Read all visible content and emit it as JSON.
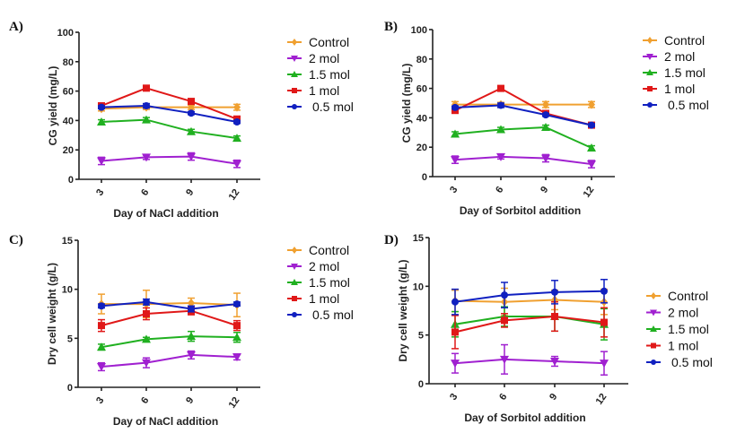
{
  "series_styles": [
    {
      "name": "Control",
      "color": "#f0a030",
      "marker": "diamond"
    },
    {
      "name": "2 mol",
      "color": "#a020d0",
      "marker": "triangle-down"
    },
    {
      "name": "1.5 mol",
      "color": "#20b020",
      "marker": "triangle-up"
    },
    {
      "name": "1 mol",
      "color": "#e01818",
      "marker": "square"
    },
    {
      "name": "0.5 mol",
      "color": "#1020c0",
      "marker": "circle"
    }
  ],
  "chart_data": [
    {
      "panel": "A)",
      "type": "line",
      "title": "",
      "xlabel": "Day of NaCl addition",
      "ylabel": "CG yield (mg/L)",
      "categories": [
        "3",
        "6",
        "9",
        "12"
      ],
      "yticks": [
        "0",
        "20",
        "40",
        "60",
        "80",
        "100"
      ],
      "ylim": [
        0,
        100
      ],
      "legend": "right",
      "series": [
        {
          "name": "Control",
          "values": [
            48,
            49,
            49,
            49
          ],
          "errors": [
            1.5,
            1.5,
            1.5,
            2
          ]
        },
        {
          "name": "2 mol",
          "values": [
            12.5,
            15,
            15.5,
            10.5
          ],
          "errors": [
            2.5,
            1.5,
            2.5,
            2.5
          ]
        },
        {
          "name": "1.5 mol",
          "values": [
            39,
            40.5,
            32.5,
            28
          ],
          "errors": [
            1.5,
            1.5,
            1.5,
            1.5
          ]
        },
        {
          "name": "1 mol",
          "values": [
            50,
            62,
            53,
            41
          ],
          "errors": [
            1,
            1,
            1.5,
            1
          ]
        },
        {
          "name": "0.5 mol",
          "values": [
            49,
            50,
            45,
            39
          ],
          "errors": [
            1,
            1.5,
            1,
            1
          ]
        }
      ]
    },
    {
      "panel": "B)",
      "type": "line",
      "title": "",
      "xlabel": "Day of Sorbitol addition",
      "ylabel": "CG yield (mg/L)",
      "categories": [
        "3",
        "6",
        "9",
        "12"
      ],
      "yticks": [
        "0",
        "20",
        "40",
        "60",
        "80",
        "100"
      ],
      "ylim": [
        0,
        100
      ],
      "legend": "right",
      "series": [
        {
          "name": "Control",
          "values": [
            49,
            49,
            49,
            49
          ],
          "errors": [
            2,
            1.5,
            2,
            2
          ]
        },
        {
          "name": "2 mol",
          "values": [
            11.5,
            13.5,
            12.5,
            8.5
          ],
          "errors": [
            2.5,
            1.5,
            2.5,
            2.5
          ]
        },
        {
          "name": "1.5 mol",
          "values": [
            29,
            32,
            33.5,
            19.5
          ],
          "errors": [
            1.5,
            1.5,
            1.5,
            1.5
          ]
        },
        {
          "name": "1 mol",
          "values": [
            45,
            60,
            43,
            35
          ],
          "errors": [
            1.5,
            1,
            1,
            1
          ]
        },
        {
          "name": "0.5 mol",
          "values": [
            47,
            48.5,
            42,
            35
          ],
          "errors": [
            1,
            1.5,
            1,
            1
          ]
        }
      ]
    },
    {
      "panel": "C)",
      "type": "line",
      "title": "",
      "xlabel": "Day of NaCl addition",
      "ylabel": "Dry cell weight (g/L)",
      "categories": [
        "3",
        "6",
        "9",
        "12"
      ],
      "yticks": [
        "0",
        "5",
        "10",
        "15"
      ],
      "ylim": [
        0,
        15
      ],
      "legend": "right",
      "series": [
        {
          "name": "Control",
          "values": [
            8.5,
            8.5,
            8.6,
            8.4
          ],
          "errors": [
            1.0,
            1.4,
            0.5,
            1.2
          ]
        },
        {
          "name": "2 mol",
          "values": [
            2.1,
            2.5,
            3.3,
            3.1
          ],
          "errors": [
            0.4,
            0.5,
            0.4,
            0.3
          ]
        },
        {
          "name": "1.5 mol",
          "values": [
            4.1,
            4.9,
            5.2,
            5.1
          ],
          "errors": [
            0.3,
            0.2,
            0.5,
            0.5
          ]
        },
        {
          "name": "1 mol",
          "values": [
            6.3,
            7.5,
            7.8,
            6.3
          ],
          "errors": [
            0.6,
            0.6,
            0.4,
            0.5
          ]
        },
        {
          "name": "0.5 mol",
          "values": [
            8.3,
            8.7,
            8.0,
            8.5
          ],
          "errors": [
            0.2,
            0.3,
            0.3,
            0.2
          ]
        }
      ]
    },
    {
      "panel": "D)",
      "type": "line",
      "title": "",
      "xlabel": "Day of Sorbitol addition",
      "ylabel": "Dry cell weight (g/L)",
      "categories": [
        "3",
        "6",
        "9",
        "12"
      ],
      "yticks": [
        "0",
        "5",
        "10",
        "15"
      ],
      "ylim": [
        0,
        15
      ],
      "legend": "right",
      "series": [
        {
          "name": "Control",
          "values": [
            8.5,
            8.4,
            8.6,
            8.4
          ],
          "errors": [
            1.1,
            1.4,
            1.0,
            1.3
          ]
        },
        {
          "name": "2 mol",
          "values": [
            2.1,
            2.5,
            2.3,
            2.1
          ],
          "errors": [
            1.0,
            1.5,
            0.5,
            1.2
          ]
        },
        {
          "name": "1.5 mol",
          "values": [
            6.1,
            6.9,
            6.9,
            6.1
          ],
          "errors": [
            1.3,
            1.0,
            1.5,
            1.6
          ]
        },
        {
          "name": "1 mol",
          "values": [
            5.3,
            6.5,
            6.9,
            6.3
          ],
          "errors": [
            1.7,
            0.7,
            1.5,
            1.5
          ]
        },
        {
          "name": "0.5 mol",
          "values": [
            8.4,
            9.1,
            9.4,
            9.5
          ],
          "errors": [
            1.3,
            1.3,
            1.2,
            1.2
          ]
        }
      ]
    }
  ]
}
